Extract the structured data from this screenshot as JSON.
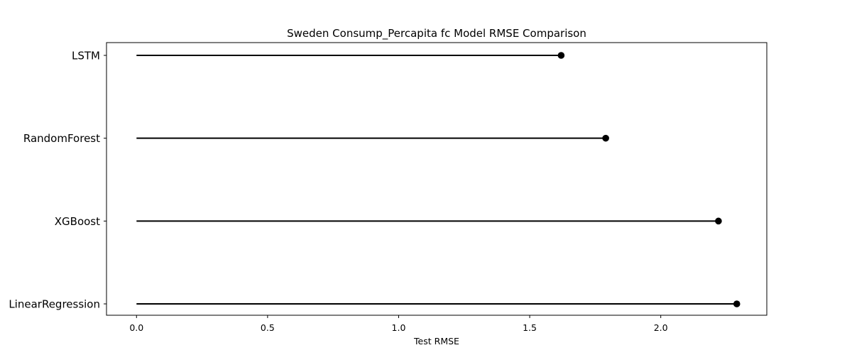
{
  "chart_data": {
    "type": "lollipop",
    "title": "Sweden Consump_Percapita fc Model RMSE Comparison",
    "xlabel": "Test RMSE",
    "ylabel": "",
    "categories": [
      "LSTM",
      "RandomForest",
      "XGBoost",
      "LinearRegression"
    ],
    "values": [
      1.62,
      1.79,
      2.22,
      2.29
    ],
    "xlim": [
      -0.1145,
      2.4045
    ],
    "xticks": [
      0.0,
      0.5,
      1.0,
      1.5,
      2.0
    ],
    "xtick_labels": [
      "0.0",
      "0.5",
      "1.0",
      "1.5",
      "2.0"
    ],
    "grid": false,
    "legend": "none",
    "colors": {
      "stem": "#000000",
      "marker": "#000000",
      "axes": "#000000",
      "background": "#ffffff"
    }
  }
}
